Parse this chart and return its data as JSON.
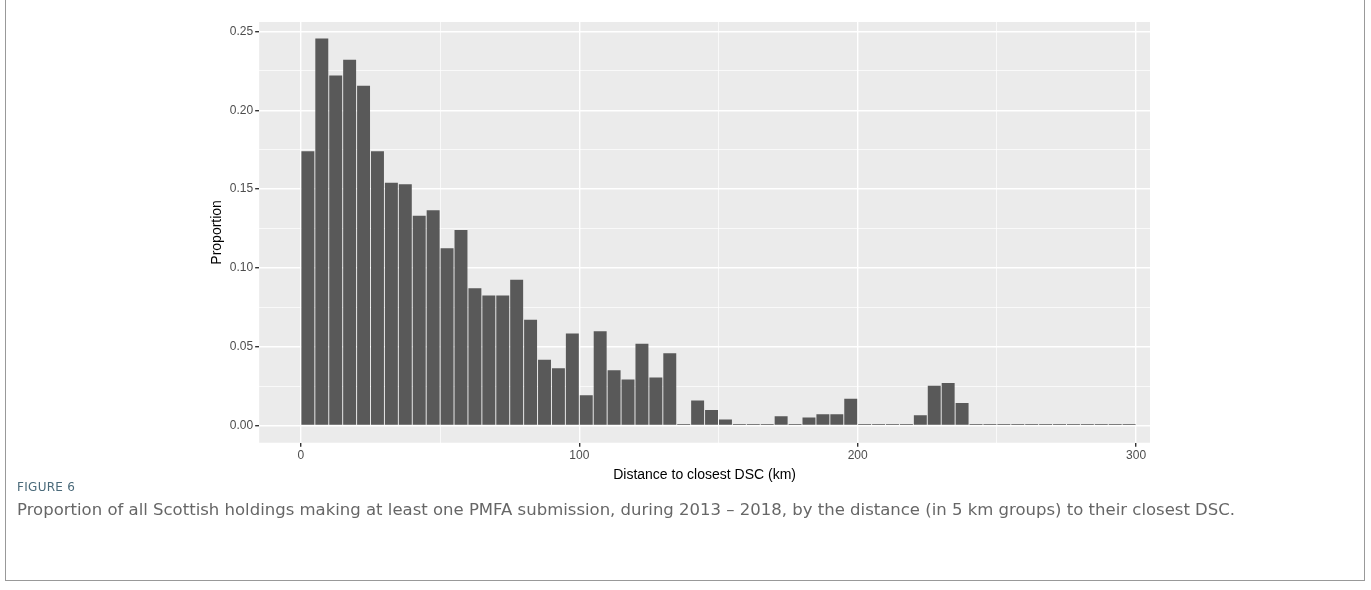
{
  "chart_data": {
    "type": "histogram",
    "xlabel": "Distance to closest DSC (km)",
    "ylabel": "Proportion",
    "bins": [
      0,
      5,
      10,
      15,
      20,
      25,
      30,
      35,
      40,
      45,
      50,
      55,
      60,
      65,
      70,
      75,
      80,
      85,
      90,
      95,
      100,
      105,
      110,
      115,
      120,
      125,
      130,
      135,
      140,
      145,
      150,
      155,
      160,
      165,
      170,
      175,
      180,
      185,
      190,
      195,
      200,
      205,
      210,
      215,
      220,
      225,
      230,
      235,
      240,
      245,
      250,
      255,
      260,
      265,
      270,
      275,
      280,
      285,
      290,
      295,
      300
    ],
    "values": [
      0.174,
      0.2455,
      0.222,
      0.232,
      0.2155,
      0.174,
      0.154,
      0.153,
      0.133,
      0.1366,
      0.1125,
      0.124,
      0.087,
      0.0824,
      0.0824,
      0.0925,
      0.067,
      0.0417,
      0.0363,
      0.0584,
      0.0191,
      0.0598,
      0.0351,
      0.0291,
      0.0518,
      0.0304,
      0.0458,
      0.001,
      0.0158,
      0.0098,
      0.0038,
      0.001,
      0.001,
      0.001,
      0.0058,
      0.001,
      0.0051,
      0.0071,
      0.0071,
      0.017,
      0.001,
      0.001,
      0.001,
      0.001,
      0.0065,
      0.0252,
      0.027,
      0.0143,
      0.001,
      0.001,
      0.001,
      0.001,
      0.001,
      0.001,
      0.001,
      0.001,
      0.001,
      0.001,
      0.001,
      0.001
    ],
    "color": "#595959",
    "xlim": [
      -15,
      305
    ],
    "xticks": [
      0,
      {
        "value": 50,
        "label": null
      },
      100,
      {
        "value": 150,
        "label": null
      },
      200,
      {
        "value": 250,
        "label": null
      },
      300
    ],
    "ylim": [
      -0.011,
      0.256
    ],
    "yticks": [
      {
        "value": 0,
        "label": "0.00"
      },
      {
        "value": 0.025,
        "label": null
      },
      {
        "value": 0.05,
        "label": "0.05"
      },
      {
        "value": 0.075,
        "label": null
      },
      {
        "value": 0.1,
        "label": "0.10"
      },
      {
        "value": 0.125,
        "label": null
      },
      {
        "value": 0.15,
        "label": "0.15"
      },
      {
        "value": 0.175,
        "label": null
      },
      {
        "value": 0.2,
        "label": "0.20"
      },
      {
        "value": 0.225,
        "label": null
      },
      {
        "value": 0.25,
        "label": "0.25"
      }
    ],
    "grid": true,
    "annotations": [
      "FIGURE 6",
      "Proportion of all Scottish holdings making at least one PMFA submission, during 2013 – 2018, by the distance (in 5 km groups) to their closest DSC."
    ]
  }
}
